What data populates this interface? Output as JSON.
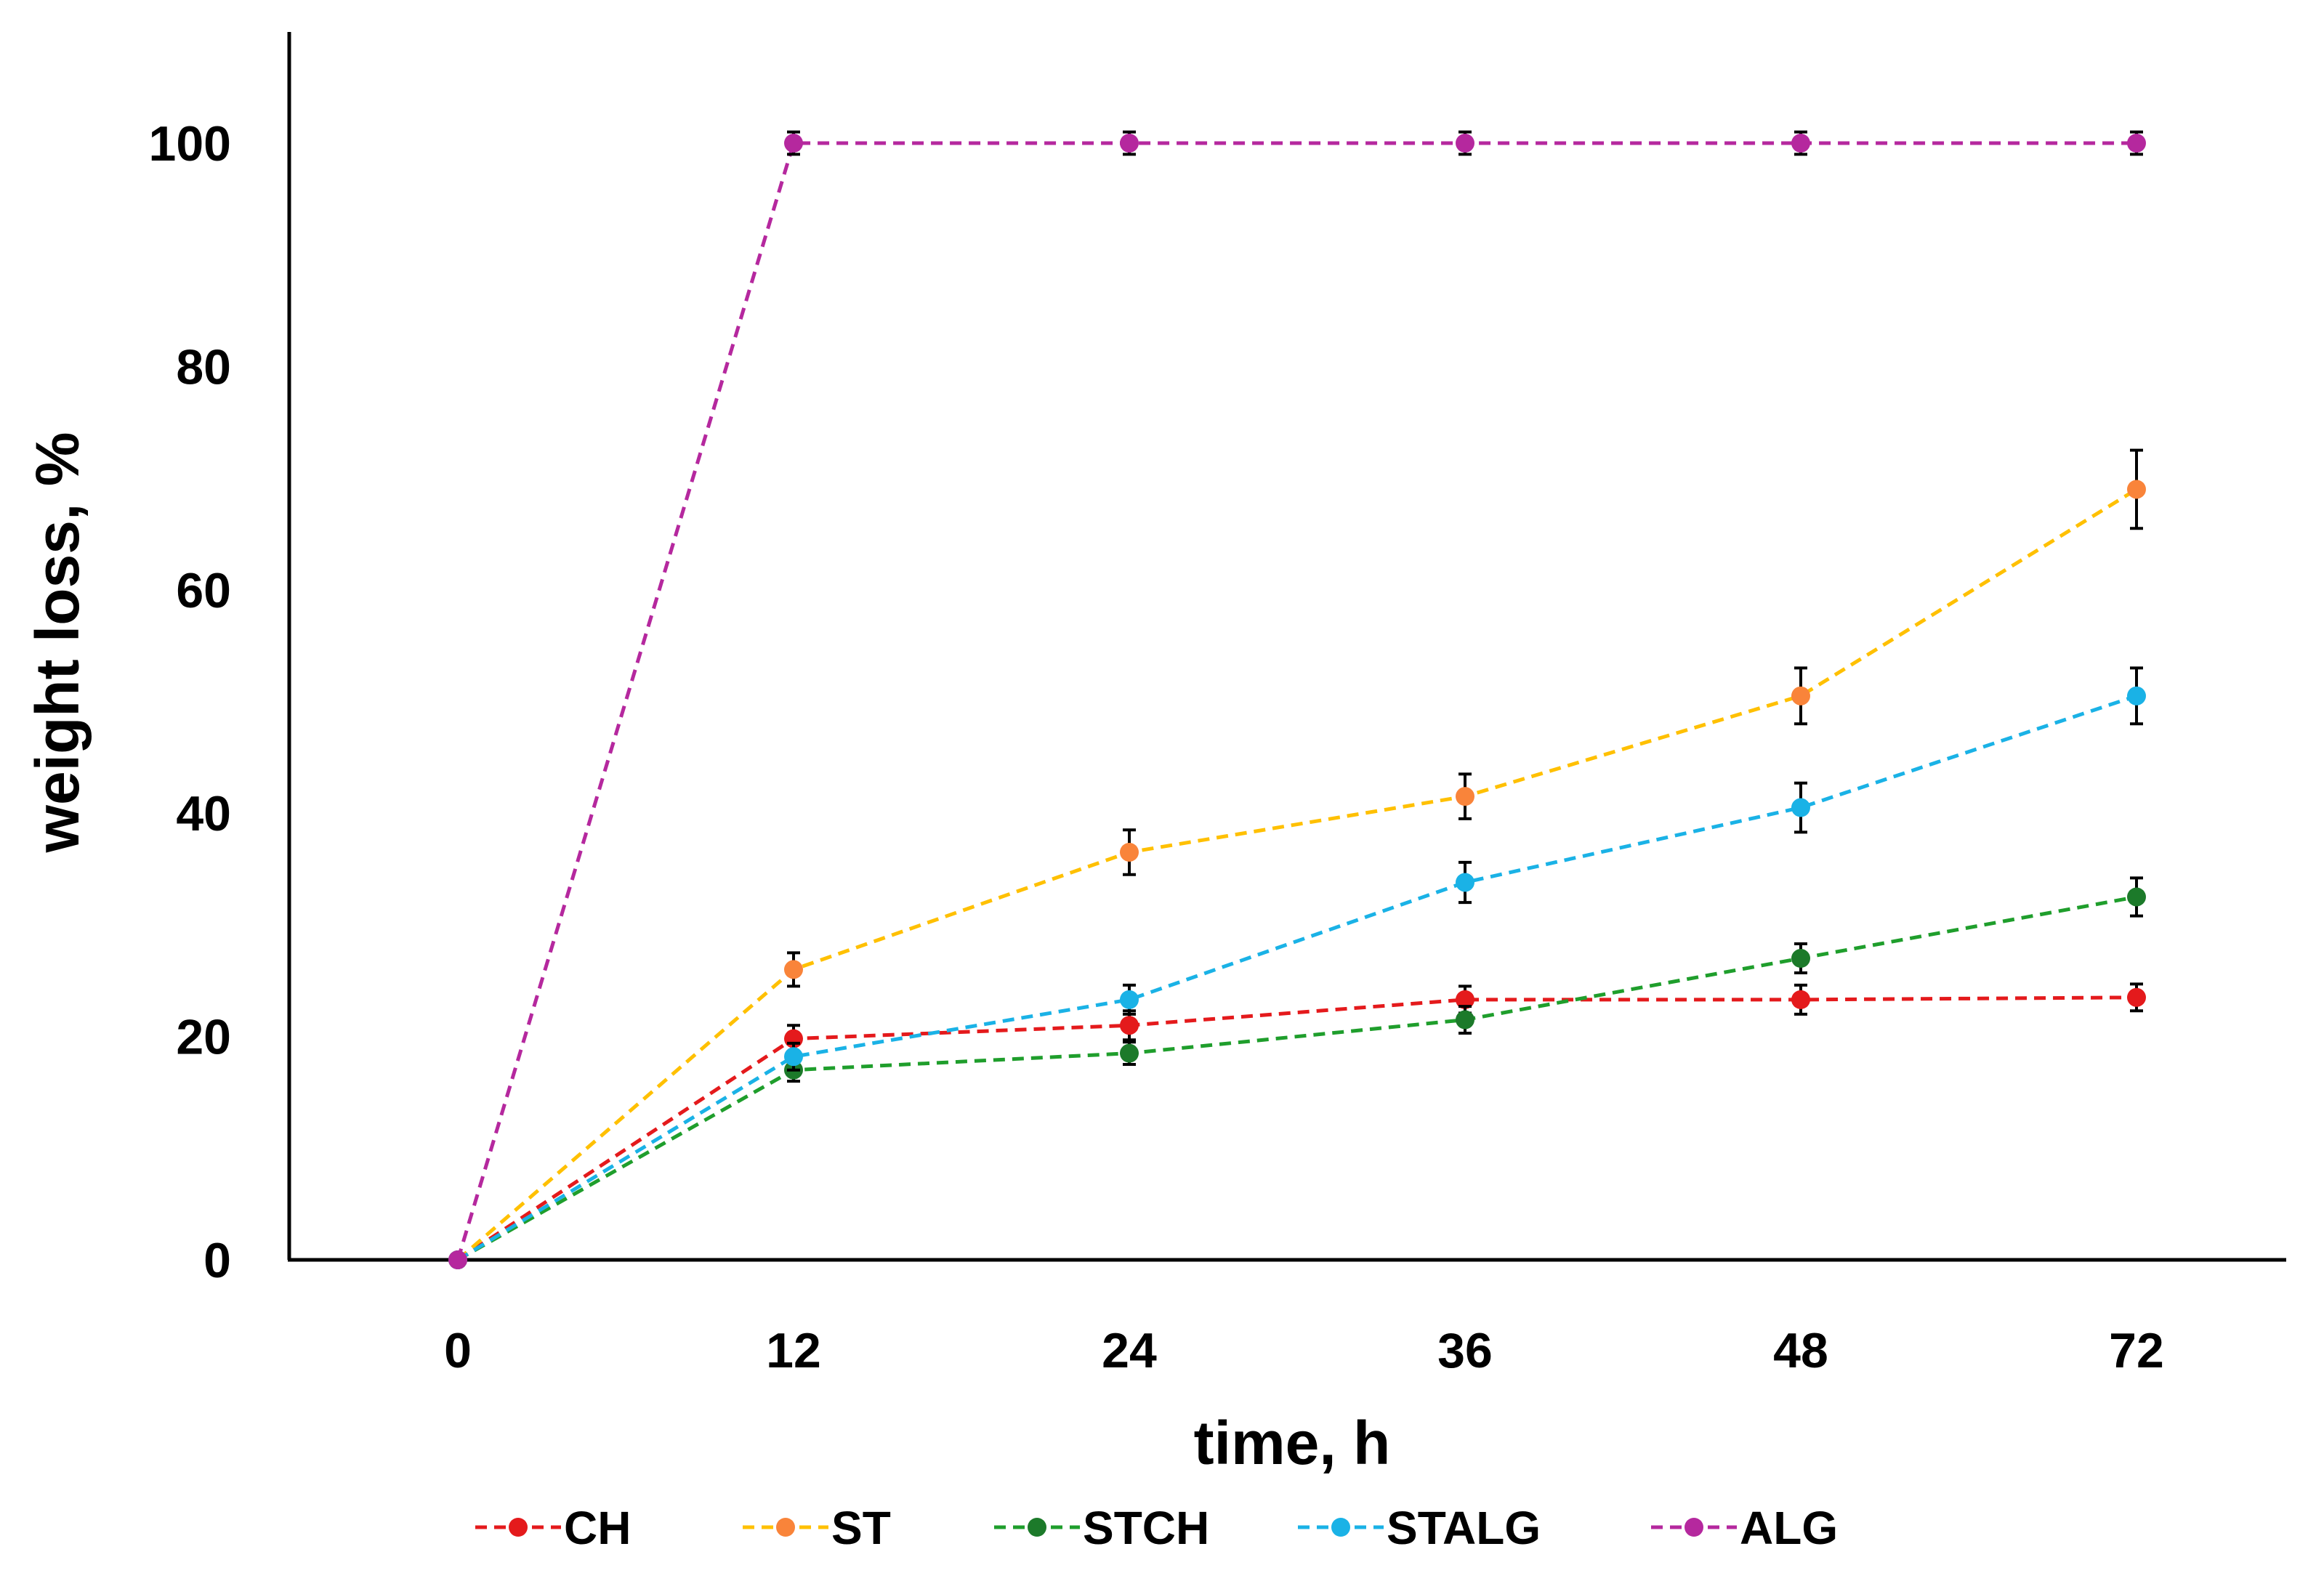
{
  "chart_data": {
    "type": "line",
    "title": "",
    "xlabel": "time, h",
    "ylabel": "weight loss, %",
    "categories": [
      "0",
      "12",
      "24",
      "36",
      "48",
      "72"
    ],
    "ylim": [
      0,
      110
    ],
    "yticks": [
      "0",
      "20",
      "40",
      "60",
      "80",
      "100"
    ],
    "grid": false,
    "legend_position": "bottom",
    "line_style": "dashed",
    "series": [
      {
        "name": "CH",
        "color": "#e41a1c",
        "values": [
          0,
          19.8,
          21,
          23.3,
          23.3,
          23.5
        ],
        "errors": [
          0,
          1.2,
          1.3,
          1.2,
          1.3,
          1.2
        ]
      },
      {
        "name": "ST",
        "color": "#ffc000",
        "marker_color": "#f9843a",
        "values": [
          0,
          26,
          36.5,
          41.5,
          50.5,
          69
        ],
        "errors": [
          0,
          1.5,
          2,
          2,
          2.5,
          3.5
        ]
      },
      {
        "name": "STCH",
        "color": "#1f9e2c",
        "marker_color": "#1c7a2a",
        "values": [
          0,
          17,
          18.5,
          21.5,
          27,
          32.5
        ],
        "errors": [
          0,
          1,
          1,
          1.2,
          1.3,
          1.7
        ]
      },
      {
        "name": "STALG",
        "color": "#1ab2e6",
        "values": [
          0,
          18.2,
          23.3,
          33.8,
          40.5,
          50.5
        ],
        "errors": [
          0,
          1.2,
          1.3,
          1.8,
          2.2,
          2.5
        ]
      },
      {
        "name": "ALG",
        "color": "#b5289e",
        "values": [
          0,
          100,
          100,
          100,
          100,
          100
        ],
        "errors": [
          0,
          1,
          1,
          1,
          1,
          1
        ]
      }
    ]
  }
}
